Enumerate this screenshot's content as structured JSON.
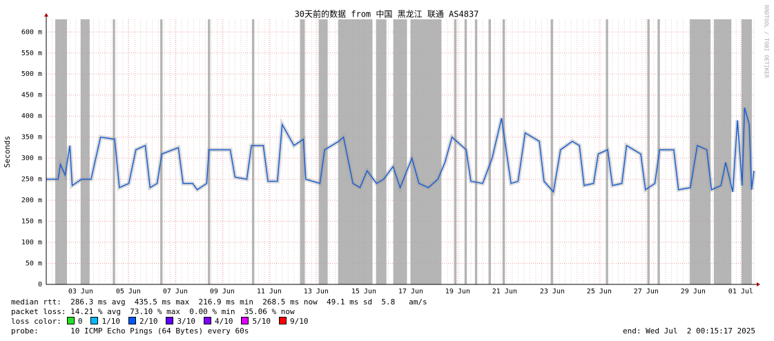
{
  "chart_data": {
    "type": "line",
    "title": "30天前的数据 from 中国 黑龙江 联通 AS4837",
    "y_label": "Seconds",
    "side_note": "RRDTOOL / TOBI OETIKER",
    "xlim": [
      0,
      30
    ],
    "ylim": [
      0,
      630
    ],
    "xticks": [
      {
        "value": 1.46,
        "label": "03 Jun"
      },
      {
        "value": 3.48,
        "label": "05 Jun"
      },
      {
        "value": 5.47,
        "label": "07 Jun"
      },
      {
        "value": 7.46,
        "label": "09 Jun"
      },
      {
        "value": 9.45,
        "label": "11 Jun"
      },
      {
        "value": 11.44,
        "label": "13 Jun"
      },
      {
        "value": 13.46,
        "label": "15 Jun"
      },
      {
        "value": 15.45,
        "label": "17 Jun"
      },
      {
        "value": 17.44,
        "label": "19 Jun"
      },
      {
        "value": 19.43,
        "label": "21 Jun"
      },
      {
        "value": 21.45,
        "label": "23 Jun"
      },
      {
        "value": 23.44,
        "label": "25 Jun"
      },
      {
        "value": 25.43,
        "label": "27 Jun"
      },
      {
        "value": 27.42,
        "label": "29 Jun"
      },
      {
        "value": 29.44,
        "label": "01 Jul"
      }
    ],
    "yticks": [
      0,
      {
        "value": 50,
        "label": "50 m"
      },
      {
        "value": 100,
        "label": "100 m"
      },
      {
        "value": 150,
        "label": "150 m"
      },
      {
        "value": 200,
        "label": "200 m"
      },
      {
        "value": 250,
        "label": "250 m"
      },
      {
        "value": 300,
        "label": "300 m"
      },
      {
        "value": 350,
        "label": "350 m"
      },
      {
        "value": 400,
        "label": "400 m"
      },
      {
        "value": 450,
        "label": "450 m"
      },
      {
        "value": 500,
        "label": "500 m"
      },
      {
        "value": 550,
        "label": "550 m"
      },
      {
        "value": 600,
        "label": "600 m"
      }
    ],
    "grid": true,
    "series": [
      {
        "name": "median rtt",
        "color": "#1a5fd0",
        "x": [
          0,
          0.5,
          0.6,
          0.8,
          1.0,
          1.1,
          1.5,
          1.9,
          2.0,
          2.3,
          2.9,
          3.1,
          3.5,
          3.8,
          4.2,
          4.4,
          4.7,
          4.9,
          5.6,
          5.8,
          6.2,
          6.4,
          6.8,
          6.9,
          7.8,
          8.0,
          8.5,
          8.7,
          9.2,
          9.4,
          9.8,
          10.0,
          10.5,
          10.9,
          11.0,
          11.6,
          11.8,
          12.4,
          12.6,
          13.0,
          13.3,
          13.6,
          14.0,
          14.3,
          14.7,
          15.0,
          15.5,
          15.8,
          16.2,
          16.6,
          16.9,
          17.2,
          17.8,
          18.0,
          18.5,
          18.9,
          19.3,
          19.7,
          20.0,
          20.3,
          20.9,
          21.1,
          21.5,
          21.8,
          22.3,
          22.6,
          22.8,
          23.2,
          23.4,
          23.8,
          24.0,
          24.4,
          24.6,
          25.2,
          25.4,
          25.8,
          26.0,
          26.6,
          26.8,
          27.3,
          27.6,
          28.0,
          28.2,
          28.6,
          28.8,
          29.1,
          29.3,
          29.5,
          29.6,
          29.8,
          29.9,
          30.0
        ],
        "values": [
          250,
          250,
          285,
          260,
          330,
          235,
          250,
          250,
          275,
          350,
          345,
          230,
          240,
          320,
          330,
          230,
          240,
          310,
          325,
          240,
          240,
          225,
          240,
          320,
          320,
          255,
          250,
          330,
          330,
          245,
          245,
          380,
          330,
          345,
          250,
          240,
          320,
          340,
          350,
          240,
          230,
          270,
          240,
          250,
          280,
          230,
          300,
          240,
          230,
          250,
          290,
          350,
          320,
          245,
          240,
          300,
          395,
          240,
          245,
          360,
          340,
          245,
          220,
          320,
          340,
          330,
          235,
          240,
          310,
          320,
          235,
          240,
          330,
          310,
          225,
          240,
          320,
          320,
          225,
          230,
          330,
          320,
          225,
          235,
          290,
          220,
          390,
          235,
          420,
          380,
          225,
          270
        ]
      }
    ],
    "loss_spans": [
      [
        0.38,
        0.88
      ],
      [
        1.46,
        1.84
      ],
      [
        2.82,
        2.92
      ],
      [
        4.83,
        4.93
      ],
      [
        6.85,
        6.95
      ],
      [
        8.72,
        8.82
      ],
      [
        10.76,
        10.96
      ],
      [
        11.55,
        11.93
      ],
      [
        12.37,
        13.83
      ],
      [
        13.98,
        14.42
      ],
      [
        14.71,
        15.29
      ],
      [
        15.44,
        16.75
      ],
      [
        17.29,
        17.39
      ],
      [
        17.73,
        17.83
      ],
      [
        18.17,
        18.27
      ],
      [
        18.75,
        18.85
      ],
      [
        19.34,
        19.44
      ],
      [
        21.38,
        21.48
      ],
      [
        23.72,
        23.82
      ],
      [
        25.48,
        25.58
      ],
      [
        25.91,
        26.01
      ],
      [
        27.28,
        28.16
      ],
      [
        28.3,
        29.04
      ],
      [
        29.47,
        29.91
      ]
    ],
    "stats": [
      "median rtt:  286.3 ms avg  435.5 ms max  216.9 ms min  268.5 ms now  49.1 ms sd  5.8   am/s",
      "packet loss: 14.21 % avg  73.10 % max  0.00 % min  35.06 % now"
    ],
    "loss_legend_label": "loss color:",
    "loss_colors": [
      {
        "label": "0",
        "color": "#26e026"
      },
      {
        "label": "1/10",
        "color": "#00b8ff"
      },
      {
        "label": "2/10",
        "color": "#0059ff"
      },
      {
        "label": "3/10",
        "color": "#5e00ff"
      },
      {
        "label": "4/10",
        "color": "#7e00ff"
      },
      {
        "label": "5/10",
        "color": "#dd00ff"
      },
      {
        "label": "9/10",
        "color": "#ff0000"
      }
    ],
    "probe": "probe:       10 ICMP Echo Pings (64 Bytes) every 60s",
    "end": "end: Wed Jul  2 00:15:17 2025"
  }
}
